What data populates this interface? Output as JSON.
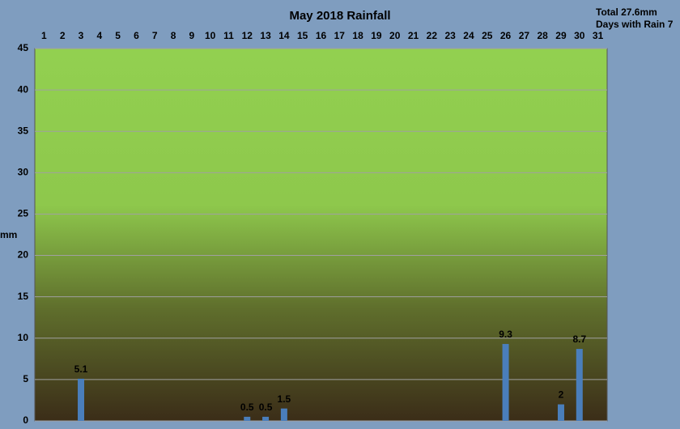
{
  "chart_data": {
    "type": "bar",
    "title": "May 2018 Rainfall",
    "annotations": [
      "Total 27.6mm",
      "Days with Rain 7"
    ],
    "ylabel": "mm",
    "categories": [
      "1",
      "2",
      "3",
      "4",
      "5",
      "6",
      "7",
      "8",
      "9",
      "10",
      "11",
      "12",
      "13",
      "14",
      "15",
      "16",
      "17",
      "18",
      "19",
      "20",
      "21",
      "22",
      "23",
      "24",
      "25",
      "26",
      "27",
      "28",
      "29",
      "30",
      "31"
    ],
    "values": [
      0,
      0,
      5.1,
      0,
      0,
      0,
      0,
      0,
      0,
      0,
      0,
      0.5,
      0.5,
      1.5,
      0,
      0,
      0,
      0,
      0,
      0,
      0,
      0,
      0,
      0,
      0,
      9.3,
      0,
      0,
      2,
      8.7,
      0
    ],
    "color": "#4a7ebb",
    "ylim": [
      0,
      45
    ],
    "yticks": [
      0,
      5,
      10,
      15,
      20,
      25,
      30,
      35,
      40,
      45
    ],
    "grid": true
  }
}
